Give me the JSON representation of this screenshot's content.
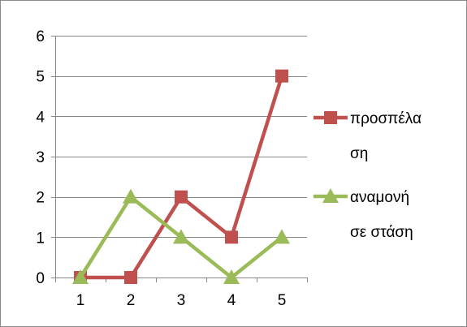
{
  "chart_data": {
    "type": "line",
    "title": "",
    "xlabel": "",
    "ylabel": "",
    "categories": [
      "1",
      "2",
      "3",
      "4",
      "5"
    ],
    "ylim": [
      0,
      6
    ],
    "yticks": [
      "0",
      "1",
      "2",
      "3",
      "4",
      "5",
      "6"
    ],
    "grid": "horizontal",
    "legend_position": "right",
    "series": [
      {
        "name": "προσπέλαση",
        "legend_lines": [
          "προσπέλα",
          "ση"
        ],
        "values": [
          0,
          0,
          2,
          1,
          5
        ],
        "color": "#c0504d",
        "marker": "square"
      },
      {
        "name": "αναμονή σε στάση",
        "legend_lines": [
          "αναμονή",
          "σε στάση"
        ],
        "values": [
          0,
          2,
          1,
          0,
          1
        ],
        "color": "#9bbb59",
        "marker": "triangle"
      }
    ]
  }
}
